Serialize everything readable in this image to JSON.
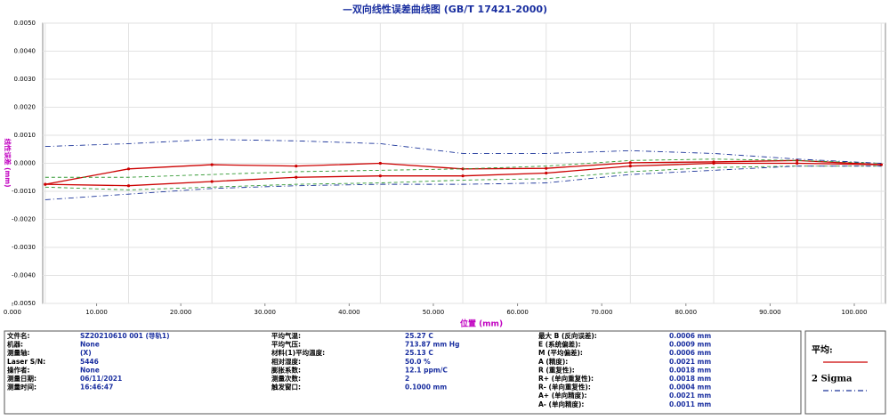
{
  "chart_data": {
    "type": "line",
    "title": "—双向线性误差曲线图  (GB/T 17421-2000)",
    "x_label": "位置 (mm)",
    "y_label": "线性误差 (mm)",
    "x": [
      3.9,
      13.8,
      23.7,
      33.7,
      43.7,
      53.5,
      63.4,
      73.4,
      83.3,
      93.2,
      103.2
    ],
    "xlim": [
      3.6,
      103.7
    ],
    "xticks": [
      {
        "value": 0,
        "label": "0.000"
      },
      {
        "value": 10,
        "label": "10.000"
      },
      {
        "value": 20,
        "label": "20.000"
      },
      {
        "value": 30,
        "label": "30.000"
      },
      {
        "value": 40,
        "label": "40.000"
      },
      {
        "value": 50,
        "label": "50.000"
      },
      {
        "value": 60,
        "label": "60.000"
      },
      {
        "value": 70,
        "label": "70.000"
      },
      {
        "value": 80,
        "label": "80.000"
      },
      {
        "value": 90,
        "label": "90.000"
      },
      {
        "value": 100,
        "label": "100.000"
      }
    ],
    "ylim": [
      -0.005,
      0.005
    ],
    "yticks": [
      {
        "value": 0.005,
        "label": "0.0050"
      },
      {
        "value": 0.004,
        "label": "0.0040"
      },
      {
        "value": 0.003,
        "label": "0.0030"
      },
      {
        "value": 0.002,
        "label": "0.0020"
      },
      {
        "value": 0.001,
        "label": "0.0010"
      },
      {
        "value": 0,
        "label": "0.0000"
      },
      {
        "value": -0.001,
        "label": "-0.0010"
      },
      {
        "value": -0.002,
        "label": "-0.0020"
      },
      {
        "value": -0.003,
        "label": "-0.0030"
      },
      {
        "value": -0.004,
        "label": "-0.0040"
      },
      {
        "value": -0.005,
        "label": "-0.0050"
      }
    ],
    "grid": true,
    "series": [
      {
        "color": "#cc0000",
        "style": "solid",
        "values": [
          -0.00075,
          -0.0002,
          -5e-05,
          -0.0001,
          0,
          -0.0002,
          -0.00018,
          2e-05,
          5e-05,
          0.0001,
          -5e-05
        ]
      },
      {
        "color": "#cc0000",
        "style": "solid",
        "values": [
          -0.00075,
          -0.0008,
          -0.00065,
          -0.0005,
          -0.00045,
          -0.00045,
          -0.00035,
          -0.0001,
          0,
          0,
          -5e-05
        ]
      },
      {
        "color": "#339933",
        "style": "dashed",
        "values": [
          -0.0005,
          -0.0005,
          -0.0004,
          -0.0003,
          -0.00025,
          -0.0002,
          -0.0001,
          0.0001,
          0.00015,
          0.0001,
          0
        ]
      },
      {
        "color": "#339933",
        "style": "dashed",
        "values": [
          -0.00085,
          -0.00095,
          -0.00085,
          -0.00075,
          -0.0007,
          -0.0006,
          -0.00055,
          -0.0003,
          -0.00015,
          -0.0001,
          -0.0001
        ]
      },
      {
        "color": "#1a3399",
        "style": "dashdot",
        "values": [
          0.0006,
          0.0007,
          0.00085,
          0.0008,
          0.0007,
          0.00035,
          0.00035,
          0.00045,
          0.00035,
          0.00015,
          0
        ]
      },
      {
        "color": "#1a3399",
        "style": "dashdot",
        "values": [
          -0.0013,
          -0.0011,
          -0.0009,
          -0.0008,
          -0.00075,
          -0.00075,
          -0.0007,
          -0.0004,
          -0.00025,
          -0.0001,
          -0.0001
        ]
      }
    ],
    "legend": [
      {
        "label": "平均:",
        "color": "#cc0000",
        "style": "solid"
      },
      {
        "label": "2 Sigma",
        "color": "#1a3399",
        "style": "dashdot"
      }
    ]
  },
  "info": {
    "columns": [
      [
        [
          "文件名:",
          "SZ20210610 001 (导轨1)"
        ],
        [
          "机器:",
          "None"
        ],
        [
          "测量轴:",
          "(X)"
        ],
        [
          "Laser S/N:",
          "5446"
        ],
        [
          "操作者:",
          "None"
        ],
        [
          "测量日期:",
          "06/11/2021"
        ],
        [
          "测量时间:",
          "16:46:47"
        ]
      ],
      [
        [
          "平均气温:",
          "25.27 C"
        ],
        [
          "平均气压:",
          "713.87 mm Hg"
        ],
        [
          "材料(1)平均温度:",
          "25.13 C"
        ],
        [
          "相对湿度:",
          "50.0 %"
        ],
        [
          "膨胀系数:",
          "12.1 ppm/C"
        ],
        [
          "测量次数:",
          "2"
        ],
        [
          "触发窗口:",
          "0.1000 mm"
        ]
      ],
      [
        [
          "最大 B (反向误差):",
          "0.0006 mm"
        ],
        [
          "E (系统偏差):",
          "0.0009 mm"
        ],
        [
          "M (平均偏差):",
          "0.0006 mm"
        ],
        [
          "A (精度):",
          "0.0021 mm"
        ],
        [
          "R (重复性):",
          "0.0018 mm"
        ],
        [
          "R+ (单向重复性):",
          "0.0018 mm"
        ],
        [
          "R- (单向重复性):",
          "0.0004 mm"
        ],
        [
          "A+ (单向精度):",
          "0.0021 mm"
        ],
        [
          "A- (单向精度):",
          "0.0011 mm"
        ]
      ]
    ]
  }
}
